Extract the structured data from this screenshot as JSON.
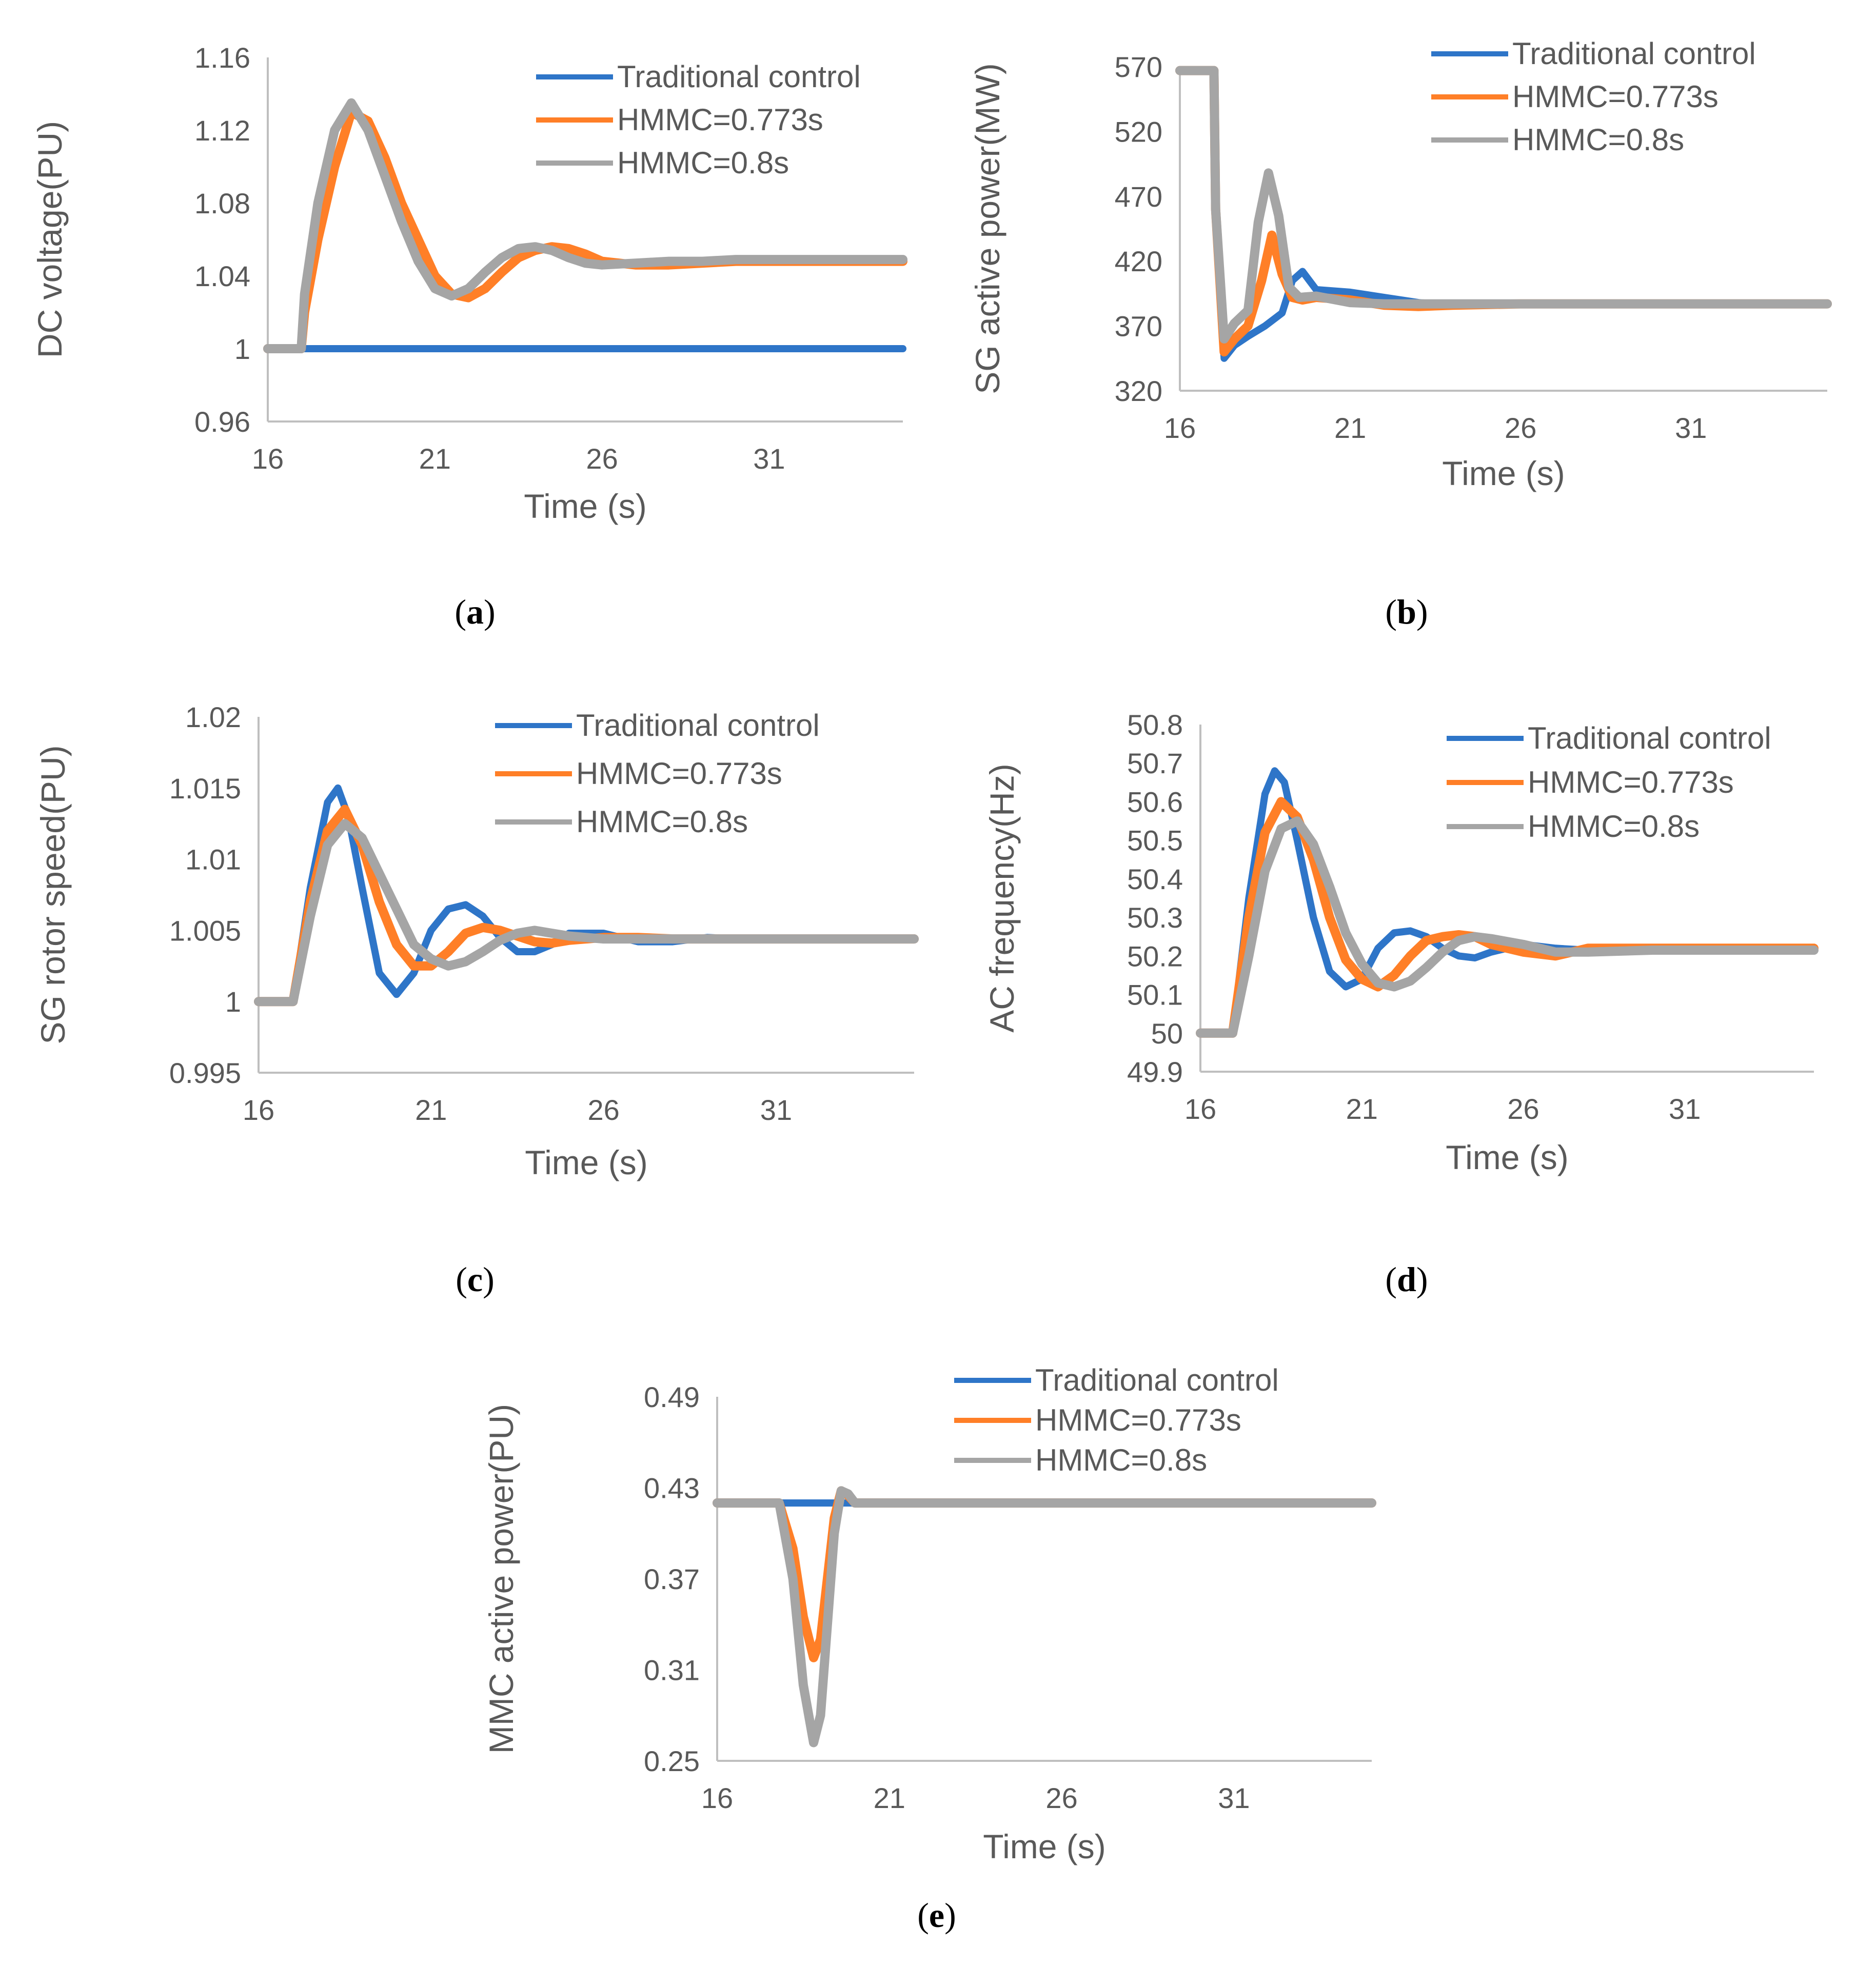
{
  "colors": {
    "traditional": "#2e75c8",
    "hmmc_0773": "#ff7f27",
    "hmmc_08": "#a5a5a5"
  },
  "legend_labels": [
    "Traditional control",
    "HMMC=0.773s",
    "HMMC=0.8s"
  ],
  "chart_data": [
    {
      "id": "a",
      "type": "line",
      "caption": "a",
      "ylabel": "DC voltage(PU)",
      "xlabel": "Time (s)",
      "xlim": [
        16,
        35
      ],
      "ylim": [
        0.96,
        1.16
      ],
      "xticks": [
        16,
        21,
        26,
        31
      ],
      "yticks": [
        0.96,
        1,
        1.04,
        1.08,
        1.12,
        1.16
      ],
      "ytick_labels": [
        "0.96",
        "1",
        "1.04",
        "1.08",
        "1.12",
        "1.16"
      ],
      "series": [
        {
          "name": "Traditional control",
          "key": "traditional",
          "x": [
            16,
            35
          ],
          "y": [
            1.0,
            1.0
          ]
        },
        {
          "name": "HMMC=0.773s",
          "key": "hmmc_0773",
          "x": [
            16,
            17,
            17.1,
            17.5,
            18,
            18.5,
            19,
            19.5,
            20,
            20.5,
            21,
            21.5,
            22,
            22.5,
            23,
            23.5,
            24,
            24.5,
            25,
            25.5,
            26,
            27,
            28,
            29,
            30,
            32,
            35
          ],
          "y": [
            1.0,
            1.0,
            1.02,
            1.06,
            1.1,
            1.13,
            1.125,
            1.105,
            1.08,
            1.06,
            1.04,
            1.03,
            1.028,
            1.033,
            1.042,
            1.05,
            1.054,
            1.056,
            1.055,
            1.052,
            1.048,
            1.046,
            1.046,
            1.047,
            1.048,
            1.048,
            1.048
          ]
        },
        {
          "name": "HMMC=0.8s",
          "key": "hmmc_08",
          "x": [
            16,
            17,
            17.1,
            17.5,
            18,
            18.5,
            19,
            19.5,
            20,
            20.5,
            21,
            21.5,
            22,
            22.5,
            23,
            23.5,
            24,
            24.5,
            25,
            25.5,
            26,
            27,
            28,
            29,
            30,
            32,
            35
          ],
          "y": [
            1.0,
            1.0,
            1.03,
            1.08,
            1.12,
            1.135,
            1.12,
            1.095,
            1.07,
            1.048,
            1.033,
            1.029,
            1.033,
            1.042,
            1.05,
            1.055,
            1.056,
            1.054,
            1.05,
            1.047,
            1.046,
            1.047,
            1.048,
            1.048,
            1.049,
            1.049,
            1.049
          ]
        }
      ]
    },
    {
      "id": "b",
      "type": "line",
      "caption": "b",
      "ylabel": "SG active power(MW)",
      "xlabel": "Time (s)",
      "xlim": [
        16,
        35
      ],
      "ylim": [
        320,
        570
      ],
      "xticks": [
        16,
        21,
        26,
        31
      ],
      "yticks": [
        320,
        370,
        420,
        470,
        520,
        570
      ],
      "ytick_labels": [
        "320",
        "370",
        "420",
        "470",
        "520",
        "570"
      ],
      "series": [
        {
          "name": "Traditional control",
          "key": "traditional",
          "x": [
            16,
            17,
            17.05,
            17.3,
            17.6,
            18,
            18.5,
            19,
            19.3,
            19.6,
            20,
            21,
            22,
            23,
            24,
            25,
            26,
            28,
            30,
            35
          ],
          "y": [
            567,
            567,
            460,
            345,
            355,
            362,
            370,
            380,
            405,
            412,
            398,
            396,
            392,
            388,
            386,
            386,
            387,
            387,
            387,
            387
          ]
        },
        {
          "name": "HMMC=0.773s",
          "key": "hmmc_0773",
          "x": [
            16,
            17,
            17.05,
            17.3,
            17.6,
            18,
            18.4,
            18.7,
            19,
            19.3,
            19.6,
            20,
            21,
            22,
            23,
            24,
            26,
            28,
            30,
            35
          ],
          "y": [
            567,
            567,
            460,
            350,
            360,
            370,
            405,
            440,
            410,
            392,
            390,
            392,
            390,
            386,
            385,
            386,
            387,
            387,
            387,
            387
          ]
        },
        {
          "name": "HMMC=0.8s",
          "key": "hmmc_08",
          "x": [
            16,
            17,
            17.05,
            17.3,
            17.6,
            18,
            18.3,
            18.6,
            18.9,
            19.2,
            19.5,
            20,
            21,
            22,
            23,
            24,
            26,
            28,
            30,
            35
          ],
          "y": [
            567,
            567,
            460,
            360,
            372,
            382,
            450,
            488,
            455,
            400,
            392,
            393,
            388,
            387,
            387,
            387,
            387,
            387,
            387,
            387
          ]
        }
      ]
    },
    {
      "id": "c",
      "type": "line",
      "caption": "c",
      "ylabel": "SG rotor speed(PU)",
      "xlabel": "Time (s)",
      "xlim": [
        16,
        35
      ],
      "ylim": [
        0.995,
        1.02
      ],
      "xticks": [
        16,
        21,
        26,
        31
      ],
      "yticks": [
        0.995,
        1,
        1.005,
        1.01,
        1.015,
        1.02
      ],
      "ytick_labels": [
        "0.995",
        "1",
        "1.005",
        "1.01",
        "1.015",
        "1.02"
      ],
      "series": [
        {
          "name": "Traditional control",
          "key": "traditional",
          "x": [
            16,
            17,
            17.5,
            18,
            18.3,
            18.6,
            19,
            19.5,
            20,
            20.5,
            21,
            21.5,
            22,
            22.5,
            23,
            23.5,
            24,
            24.5,
            25,
            26,
            27,
            28,
            29,
            30,
            35
          ],
          "y": [
            1.0,
            1.0,
            1.008,
            1.014,
            1.015,
            1.013,
            1.008,
            1.002,
            1.0005,
            1.002,
            1.005,
            1.0065,
            1.0068,
            1.006,
            1.0045,
            1.0035,
            1.0035,
            1.004,
            1.0048,
            1.0048,
            1.0042,
            1.0042,
            1.0045,
            1.0044,
            1.0044
          ]
        },
        {
          "name": "HMMC=0.773s",
          "key": "hmmc_0773",
          "x": [
            16,
            17,
            17.5,
            18,
            18.5,
            19,
            19.5,
            20,
            20.5,
            21,
            21.5,
            22,
            22.5,
            23,
            23.5,
            24,
            24.5,
            25,
            26,
            27,
            28,
            30,
            35
          ],
          "y": [
            1.0,
            1.0,
            1.007,
            1.012,
            1.0135,
            1.011,
            1.007,
            1.004,
            1.0025,
            1.0025,
            1.0035,
            1.0048,
            1.0052,
            1.005,
            1.0046,
            1.0042,
            1.0041,
            1.0043,
            1.0045,
            1.0045,
            1.0044,
            1.0044,
            1.0044
          ]
        },
        {
          "name": "HMMC=0.8s",
          "key": "hmmc_08",
          "x": [
            16,
            17,
            17.5,
            18,
            18.5,
            19,
            19.5,
            20,
            20.5,
            21,
            21.5,
            22,
            22.5,
            23,
            23.5,
            24,
            24.5,
            25,
            26,
            27,
            28,
            30,
            35
          ],
          "y": [
            1.0,
            1.0,
            1.006,
            1.011,
            1.0125,
            1.0115,
            1.009,
            1.0065,
            1.004,
            1.003,
            1.0025,
            1.0028,
            1.0035,
            1.0043,
            1.0048,
            1.005,
            1.0048,
            1.0046,
            1.0044,
            1.0044,
            1.0044,
            1.0044,
            1.0044
          ]
        }
      ]
    },
    {
      "id": "d",
      "type": "line",
      "caption": "d",
      "ylabel": "AC frequency(Hz)",
      "xlabel": "Time (s)",
      "xlim": [
        16,
        35
      ],
      "ylim": [
        49.9,
        50.8
      ],
      "xticks": [
        16,
        21,
        26,
        31
      ],
      "yticks": [
        49.9,
        50,
        50.1,
        50.2,
        50.3,
        50.4,
        50.5,
        50.6,
        50.7,
        50.8
      ],
      "ytick_labels": [
        "49.9",
        "50",
        "50.1",
        "50.2",
        "50.3",
        "50.4",
        "50.5",
        "50.6",
        "50.7",
        "50.8"
      ],
      "series": [
        {
          "name": "Traditional control",
          "key": "traditional",
          "x": [
            16,
            17,
            17.5,
            18,
            18.3,
            18.6,
            19,
            19.5,
            20,
            20.5,
            21,
            21.5,
            22,
            22.5,
            23,
            23.5,
            24,
            24.5,
            25,
            26,
            27,
            28,
            30,
            35
          ],
          "y": [
            50.0,
            50.0,
            50.35,
            50.62,
            50.68,
            50.65,
            50.5,
            50.3,
            50.16,
            50.12,
            50.14,
            50.22,
            50.26,
            50.265,
            50.25,
            50.22,
            50.2,
            50.195,
            50.21,
            50.23,
            50.22,
            50.215,
            50.22,
            50.22
          ]
        },
        {
          "name": "HMMC=0.773s",
          "key": "hmmc_0773",
          "x": [
            16,
            17,
            17.5,
            18,
            18.5,
            19,
            19.5,
            20,
            20.5,
            21,
            21.5,
            22,
            22.5,
            23,
            23.5,
            24,
            24.5,
            25,
            26,
            27,
            28,
            30,
            35
          ],
          "y": [
            50.0,
            50.0,
            50.3,
            50.52,
            50.6,
            50.56,
            50.45,
            50.3,
            50.19,
            50.14,
            50.12,
            50.15,
            50.2,
            50.24,
            50.25,
            50.255,
            50.25,
            50.23,
            50.21,
            50.2,
            50.22,
            50.22,
            50.22
          ]
        },
        {
          "name": "HMMC=0.8s",
          "key": "hmmc_08",
          "x": [
            16,
            17,
            17.5,
            18,
            18.5,
            19,
            19.5,
            20,
            20.5,
            21,
            21.5,
            22,
            22.5,
            23,
            23.5,
            24,
            24.5,
            25,
            26,
            27,
            28,
            30,
            35
          ],
          "y": [
            50.0,
            50.0,
            50.2,
            50.42,
            50.53,
            50.55,
            50.49,
            50.38,
            50.26,
            50.18,
            50.13,
            50.12,
            50.135,
            50.17,
            50.21,
            50.24,
            50.25,
            50.245,
            50.23,
            50.21,
            50.21,
            50.215,
            50.215
          ]
        }
      ]
    },
    {
      "id": "e",
      "type": "line",
      "caption": "e",
      "ylabel": "MMC active power(PU)",
      "xlabel": "Time (s)",
      "xlim": [
        16,
        35
      ],
      "ylim": [
        0.25,
        0.49
      ],
      "xticks": [
        16,
        21,
        26,
        31
      ],
      "yticks": [
        0.25,
        0.31,
        0.37,
        0.43,
        0.49
      ],
      "ytick_labels": [
        "0.25",
        "0.31",
        "0.37",
        "0.43",
        "0.49"
      ],
      "series": [
        {
          "name": "Traditional control",
          "key": "traditional",
          "x": [
            16,
            35
          ],
          "y": [
            0.42,
            0.42
          ]
        },
        {
          "name": "HMMC=0.773s",
          "key": "hmmc_0773",
          "x": [
            16,
            17.8,
            18.2,
            18.5,
            18.8,
            19.0,
            19.2,
            19.4,
            19.6,
            19.8,
            20.0,
            20.5,
            35
          ],
          "y": [
            0.42,
            0.42,
            0.39,
            0.345,
            0.318,
            0.33,
            0.37,
            0.41,
            0.428,
            0.425,
            0.42,
            0.42,
            0.42
          ]
        },
        {
          "name": "HMMC=0.8s",
          "key": "hmmc_08",
          "x": [
            16,
            17.8,
            18.2,
            18.5,
            18.8,
            19.0,
            19.2,
            19.4,
            19.6,
            19.8,
            20.0,
            20.5,
            35
          ],
          "y": [
            0.42,
            0.42,
            0.37,
            0.3,
            0.262,
            0.28,
            0.34,
            0.4,
            0.428,
            0.426,
            0.42,
            0.42,
            0.42
          ]
        }
      ]
    }
  ]
}
